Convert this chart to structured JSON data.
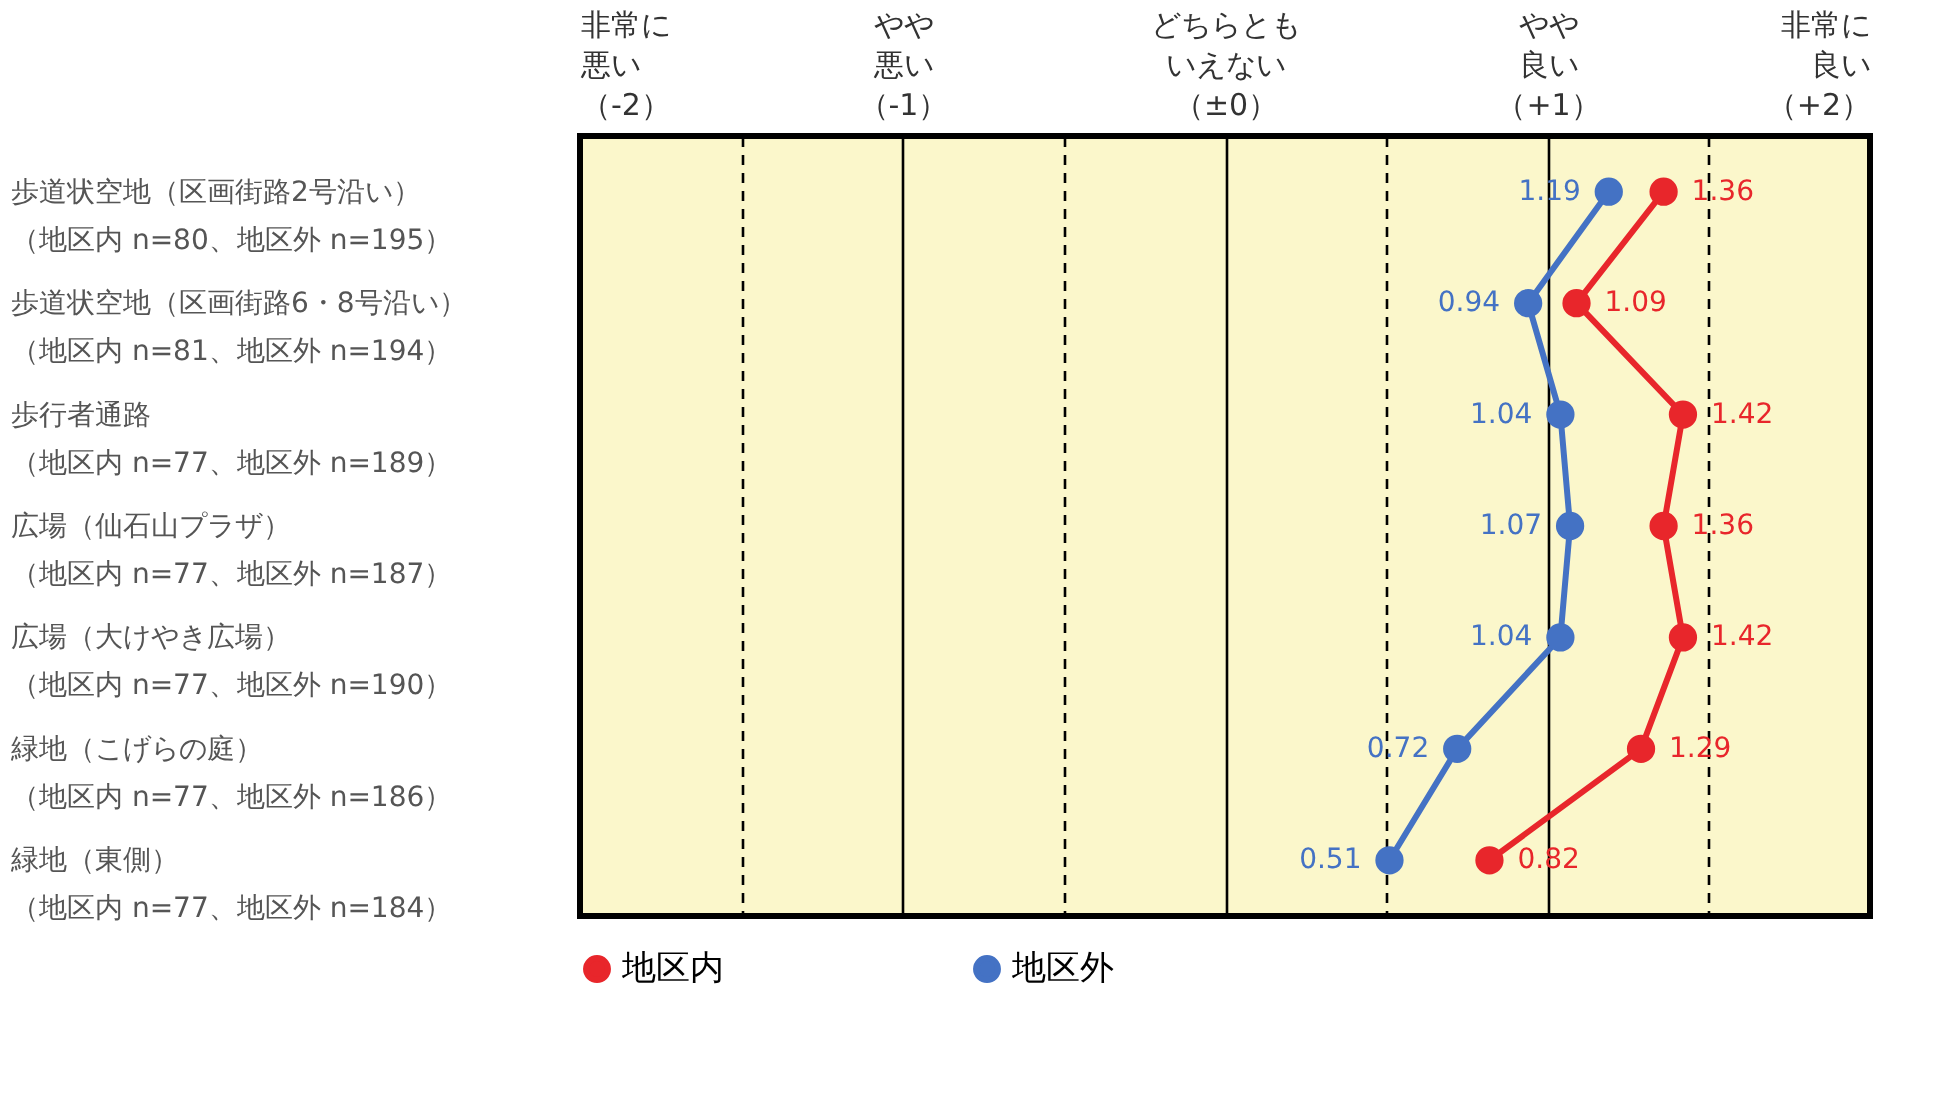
{
  "chart_data": {
    "type": "line",
    "orientation": "horizontal",
    "categories": [
      "歩道状空地（区画街路2号沿い）（地区内 n=80、地区外 n=195）",
      "歩道状空地（区画街路6・8号沿い）（地区内 n=81、地区外 n=194）",
      "歩行者通路（地区内 n=77、地区外 n=189）",
      "広場（仙石山プラザ）（地区内 n=77、地区外 n=187）",
      "広場（大けやき広場）（地区内 n=77、地区外 n=190）",
      "緑地（こげらの庭）（地区内 n=77、地区外 n=186）",
      "緑地（東側）（地区内 n=77、地区外 n=184）"
    ],
    "series": [
      {
        "name": "地区内",
        "color": "#e8262b",
        "values": [
          1.36,
          1.09,
          1.42,
          1.36,
          1.42,
          1.29,
          0.82
        ]
      },
      {
        "name": "地区外",
        "color": "#4472c4",
        "values": [
          1.19,
          0.94,
          1.04,
          1.07,
          1.04,
          0.72,
          0.51
        ]
      }
    ],
    "xlim": [
      -2,
      2
    ],
    "xticks": [
      {
        "value": -2,
        "label": "非常に悪い（-2）"
      },
      {
        "value": -1.5,
        "label": null
      },
      {
        "value": -1,
        "label": "やや悪い（-1）"
      },
      {
        "value": -0.5,
        "label": null
      },
      {
        "value": 0,
        "label": "どちらともいえない（±0）"
      },
      {
        "value": 0.5,
        "label": null
      },
      {
        "value": 1,
        "label": "やや良い（+1）"
      },
      {
        "value": 1.5,
        "label": null
      },
      {
        "value": 2,
        "label": "非常に良い（+2）"
      }
    ],
    "grid": true,
    "legend": "bottom",
    "marker": "circle",
    "data_labels": true
  }
}
